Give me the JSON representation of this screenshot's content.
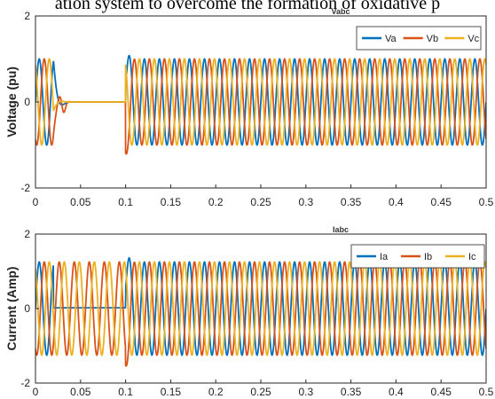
{
  "header": {
    "caption": "ation system to overcome the formation of oxidative p"
  },
  "colors": {
    "a": "#0072BD",
    "b": "#D95319",
    "c": "#EDB120",
    "axis": "#262626",
    "grid": "#d9d9d9"
  },
  "chart_data": [
    {
      "type": "line",
      "title": "Vabc",
      "ylabel": "Voltage (pu)",
      "xlim": [
        0,
        0.5
      ],
      "ylim": [
        -2,
        2
      ],
      "xticks": [
        0,
        0.05,
        0.1,
        0.15,
        0.2,
        0.25,
        0.3,
        0.35,
        0.4,
        0.45,
        0.5
      ],
      "xtick_labels": [
        "0",
        "0.05",
        "0.1",
        "0.15",
        "0.2",
        "0.25",
        "0.3",
        "0.35",
        "0.4",
        "0.45",
        "0.5"
      ],
      "yticks": [
        -2,
        0,
        2
      ],
      "ytick_labels": [
        "-2",
        "0",
        "2"
      ],
      "grid": false,
      "legend_position": "top-right",
      "frequency_hz": 60,
      "amplitude": 1.0,
      "fault_interval": [
        0.02,
        0.1
      ],
      "transient": {
        "time": 0.1,
        "Va_peak": 1.4,
        "Vb_dip": -1.4
      },
      "series": [
        {
          "name": "Va",
          "phase_deg": 0,
          "color": "#0072BD"
        },
        {
          "name": "Vb",
          "phase_deg": -120,
          "color": "#D95319"
        },
        {
          "name": "Vc",
          "phase_deg": 120,
          "color": "#EDB120"
        }
      ]
    },
    {
      "type": "line",
      "title": "Iabc",
      "ylabel": "Current (Amp)",
      "xlim": [
        0,
        0.5
      ],
      "ylim": [
        -2,
        2
      ],
      "xticks": [
        0,
        0.05,
        0.1,
        0.15,
        0.2,
        0.25,
        0.3,
        0.35,
        0.4,
        0.45,
        0.5
      ],
      "xtick_labels": [
        "0",
        "0.05",
        "0.1",
        "0.15",
        "0.2",
        "0.25",
        "0.3",
        "0.35",
        "0.4",
        "0.45",
        "0.5"
      ],
      "yticks": [
        -2,
        0,
        2
      ],
      "ytick_labels": [
        "-2",
        "0",
        "2"
      ],
      "grid": false,
      "legend_position": "top-right",
      "frequency_hz": 60,
      "amplitude": 1.25,
      "fault_interval": [
        0.02,
        0.1
      ],
      "transient": {
        "time": 0.1,
        "Ia_peak": 1.8,
        "Ib_dip": -1.8
      },
      "series": [
        {
          "name": "Ia",
          "phase_deg": 0,
          "color": "#0072BD"
        },
        {
          "name": "Ib",
          "phase_deg": -120,
          "color": "#D95319"
        },
        {
          "name": "Ic",
          "phase_deg": 120,
          "color": "#EDB120"
        }
      ]
    }
  ]
}
